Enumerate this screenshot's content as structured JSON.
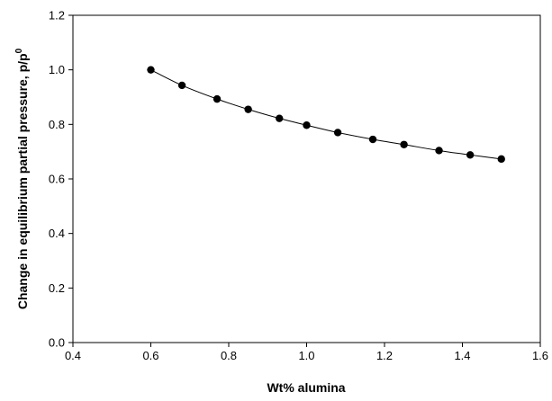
{
  "chart_data": {
    "type": "line",
    "title": "",
    "xlabel": "Wt% alumina",
    "ylabel": "Change in equilibrium partial pressure, p/p",
    "ylabel_superscript": "0",
    "xlim": [
      0.4,
      1.6
    ],
    "ylim": [
      0.0,
      1.2
    ],
    "xticks": [
      "0.4",
      "0.6",
      "0.8",
      "1.0",
      "1.2",
      "1.4",
      "1.6"
    ],
    "yticks": [
      "0.0",
      "0.2",
      "0.4",
      "0.6",
      "0.8",
      "1.0",
      "1.2"
    ],
    "grid": false,
    "legend": "none",
    "marker": "filled-circle",
    "line_color": "#000000",
    "marker_color": "#000000",
    "series": [
      {
        "x": [
          0.6,
          0.68,
          0.77,
          0.85,
          0.93,
          1.0,
          1.08,
          1.17,
          1.25,
          1.34,
          1.42,
          1.5
        ],
        "y": [
          1.0,
          0.943,
          0.893,
          0.855,
          0.822,
          0.797,
          0.77,
          0.745,
          0.726,
          0.704,
          0.688,
          0.673
        ]
      }
    ]
  }
}
